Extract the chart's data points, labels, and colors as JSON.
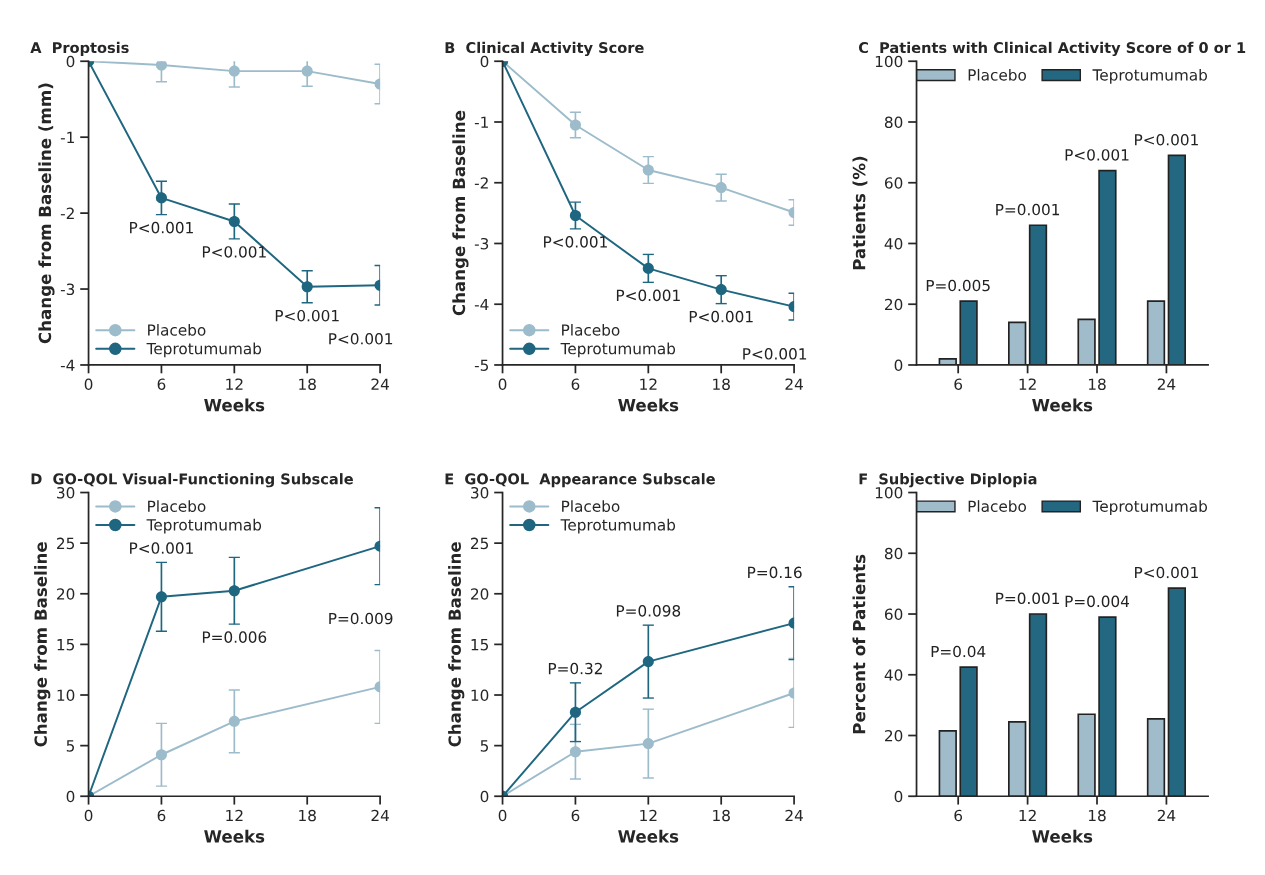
{
  "chart_data": [
    {
      "type": "line",
      "title": "A  Proptosis",
      "xlabel": "Weeks",
      "ylabel": "Change from Baseline (mm)",
      "x": [
        0,
        6,
        12,
        18,
        24
      ],
      "xlim": [
        0,
        24
      ],
      "xticks": [
        0,
        6,
        12,
        18,
        24
      ],
      "ylim": [
        -4,
        0
      ],
      "yticks": [
        -4,
        -3,
        -2,
        -1,
        0
      ],
      "marker": "circle",
      "legend": "bottom left",
      "grid": false,
      "series": [
        {
          "name": "Placebo",
          "color": "#9dbccb",
          "values": [
            0,
            -0.05,
            -0.13,
            -0.13,
            -0.3
          ],
          "errors": [
            null,
            0.22,
            0.21,
            0.2,
            0.26
          ]
        },
        {
          "name": "Teprotumumab",
          "color": "#1f6680",
          "values": [
            0,
            -1.8,
            -2.11,
            -2.97,
            -2.95
          ],
          "errors": [
            null,
            0.22,
            0.23,
            0.21,
            0.26
          ]
        }
      ],
      "annotations": [
        {
          "text": "P<0.001",
          "x": 6,
          "y": -2.02
        },
        {
          "text": "P<0.001",
          "x": 12,
          "y": -2.34
        },
        {
          "text": "P<0.001",
          "x": 18,
          "y": -3.18
        },
        {
          "text": "P<0.001",
          "x": 24,
          "y": -3.21
        }
      ]
    },
    {
      "type": "line",
      "title": "B  Clinical Activity Score",
      "xlabel": "Weeks",
      "ylabel": "Change from Baseline",
      "x": [
        0,
        6,
        12,
        18,
        24
      ],
      "xlim": [
        0,
        24
      ],
      "xticks": [
        0,
        6,
        12,
        18,
        24
      ],
      "ylim": [
        -5,
        0
      ],
      "yticks": [
        -5,
        -4,
        -3,
        -2,
        -1,
        0
      ],
      "marker": "circle",
      "legend": "bottom left",
      "grid": false,
      "series": [
        {
          "name": "Placebo",
          "color": "#9dbccb",
          "values": [
            0,
            -1.05,
            -1.79,
            -2.08,
            -2.49
          ],
          "errors": [
            null,
            0.21,
            0.22,
            0.22,
            0.21
          ]
        },
        {
          "name": "Teprotumumab",
          "color": "#1f6680",
          "values": [
            0,
            -2.54,
            -3.41,
            -3.76,
            -4.04
          ],
          "errors": [
            null,
            0.22,
            0.23,
            0.23,
            0.22
          ]
        }
      ],
      "annotations": [
        {
          "text": "P<0.001",
          "x": 6,
          "y": -2.76
        },
        {
          "text": "P<0.001",
          "x": 12,
          "y": -3.64
        },
        {
          "text": "P<0.001",
          "x": 18,
          "y": -3.99
        },
        {
          "text": "P<0.001",
          "x": 24,
          "y": -4.26
        }
      ]
    },
    {
      "type": "bar",
      "title": "C  Patients with Clinical Activity Score of 0 or 1",
      "xlabel": "Weeks",
      "ylabel": "Patients (%)",
      "categories": [
        "6",
        "12",
        "18",
        "24"
      ],
      "ylim": [
        0,
        100
      ],
      "yticks": [
        0,
        20,
        40,
        60,
        80,
        100
      ],
      "legend": "top",
      "grid": false,
      "series": [
        {
          "name": "Placebo",
          "color": "#a0bccb",
          "values": [
            2,
            14,
            15,
            21
          ]
        },
        {
          "name": "Teprotumumab",
          "color": "#236880",
          "values": [
            21,
            46,
            64,
            69
          ]
        }
      ],
      "annotations": [
        {
          "text": "P=0.005",
          "x": "6",
          "y": 21
        },
        {
          "text": "P=0.001",
          "x": "12",
          "y": 46
        },
        {
          "text": "P<0.001",
          "x": "18",
          "y": 64
        },
        {
          "text": "P<0.001",
          "x": "24",
          "y": 69
        }
      ]
    },
    {
      "type": "line",
      "title": "D  GO-QOL Visual-Functioning Subscale",
      "xlabel": "Weeks",
      "ylabel": "Change from Baseline",
      "x": [
        0,
        6,
        12,
        24
      ],
      "xlim": [
        0,
        24
      ],
      "xticks": [
        0,
        6,
        12,
        18,
        24
      ],
      "ylim": [
        0,
        30
      ],
      "yticks": [
        0,
        5,
        10,
        15,
        20,
        25,
        30
      ],
      "marker": "circle",
      "legend": "top left",
      "grid": false,
      "series": [
        {
          "name": "Placebo",
          "color": "#9dbccb",
          "values": [
            0,
            4.1,
            7.4,
            10.8
          ],
          "errors": [
            null,
            3.1,
            3.1,
            3.6
          ]
        },
        {
          "name": "Teprotumumab",
          "color": "#1f6680",
          "values": [
            0,
            19.7,
            20.3,
            24.7
          ],
          "errors": [
            null,
            3.4,
            3.3,
            3.8
          ]
        }
      ],
      "annotations": [
        {
          "text": "P<0.001",
          "x": 6,
          "y": 23.1
        },
        {
          "text": "P=0.006",
          "x": 12,
          "y": 17.0
        },
        {
          "text": "P=0.009",
          "x": 24,
          "y": 20.9
        }
      ]
    },
    {
      "type": "line",
      "title": "E  GO-QOL  Appearance Subscale",
      "xlabel": "Weeks",
      "ylabel": "Change from Baseline",
      "x": [
        0,
        6,
        12,
        24
      ],
      "xlim": [
        0,
        24
      ],
      "xticks": [
        0,
        6,
        12,
        18,
        24
      ],
      "ylim": [
        0,
        30
      ],
      "yticks": [
        0,
        5,
        10,
        15,
        20,
        25,
        30
      ],
      "marker": "circle",
      "legend": "top left",
      "grid": false,
      "series": [
        {
          "name": "Placebo",
          "color": "#9dbccb",
          "values": [
            0,
            4.4,
            5.2,
            10.2
          ],
          "errors": [
            null,
            2.7,
            3.4,
            3.4
          ]
        },
        {
          "name": "Teprotumumab",
          "color": "#1f6680",
          "values": [
            0,
            8.3,
            13.3,
            17.1
          ],
          "errors": [
            null,
            2.9,
            3.6,
            3.6
          ]
        }
      ],
      "annotations": [
        {
          "text": "P=0.32",
          "x": 6,
          "y": 11.2
        },
        {
          "text": "P=0.098",
          "x": 12,
          "y": 16.9
        },
        {
          "text": "P=0.16",
          "x": 24,
          "y": 20.7
        }
      ]
    },
    {
      "type": "bar",
      "title": "F  Subjective Diplopia",
      "xlabel": "Weeks",
      "ylabel": "Percent of Patients",
      "categories": [
        "6",
        "12",
        "18",
        "24"
      ],
      "ylim": [
        0,
        100
      ],
      "yticks": [
        0,
        20,
        40,
        60,
        80,
        100
      ],
      "legend": "top",
      "grid": false,
      "series": [
        {
          "name": "Placebo",
          "color": "#a0bccb",
          "values": [
            21.5,
            24.5,
            27,
            25.5
          ]
        },
        {
          "name": "Teprotumumab",
          "color": "#236880",
          "values": [
            42.5,
            60,
            59,
            68.5
          ]
        }
      ],
      "annotations": [
        {
          "text": "P=0.04",
          "x": "6",
          "y": 42.5
        },
        {
          "text": "P=0.001",
          "x": "12",
          "y": 60
        },
        {
          "text": "P=0.004",
          "x": "18",
          "y": 59
        },
        {
          "text": "P<0.001",
          "x": "24",
          "y": 68.5
        }
      ]
    }
  ]
}
